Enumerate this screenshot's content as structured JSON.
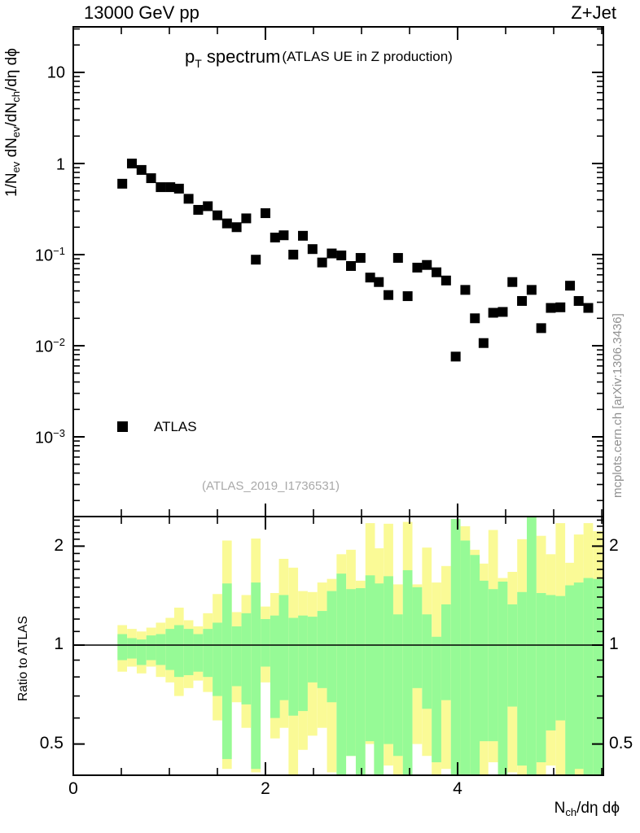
{
  "header": {
    "left": "13000 GeV pp",
    "right": "Z+Jet"
  },
  "title": {
    "prefix": "p",
    "subscript": "T",
    "rest": " spectrum",
    "annotation": "(ATLAS UE in Z production)"
  },
  "axis_labels": {
    "main_y_parts": {
      "p0": "1/N",
      "s0": "ev",
      "p1": " dN",
      "s1": "ev",
      "p2": "/dN",
      "s2": "ch",
      "p3": "/dη dϕ"
    },
    "ratio_y": "Ratio to ATLAS",
    "x_parts": {
      "p0": "N",
      "s0": "ch",
      "p1": "/dη dϕ"
    }
  },
  "legend": {
    "marker": "black-filled-square",
    "label": "ATLAS"
  },
  "watermark": "(ATLAS_2019_I1736531)",
  "credit": "mcplots.cern.ch [arXiv:1306.3436]",
  "colors": {
    "marker": "#000000",
    "band_outer": "#fafa96",
    "band_inner": "#96fa96",
    "frame": "#000000",
    "watermark": "#a9a9a9",
    "credit": "#909090"
  },
  "chart_data": {
    "type": "scatter",
    "title": "p_T spectrum (ATLAS UE in Z production)",
    "top_panel": {
      "yscale": "log",
      "xlim": [
        0,
        5.52
      ],
      "ylim": [
        0.000133,
        31.6
      ],
      "ylabel": "1/N_ev dN_ev/dN_ch/dη dϕ",
      "grid": false,
      "legend_position": "lower-left",
      "ytick_values": [
        10,
        1,
        0.1,
        0.01,
        0.001
      ],
      "ytick_labels": [
        {
          "base": "10",
          "exp": ""
        },
        {
          "base": "1",
          "exp": ""
        },
        {
          "base": "10",
          "exp": "−1"
        },
        {
          "base": "10",
          "exp": "−2"
        },
        {
          "base": "10",
          "exp": "−3"
        }
      ],
      "series": [
        {
          "name": "ATLAS",
          "marker": "filled-square",
          "color": "#000000",
          "points": [
            [
              0.51,
              0.6
            ],
            [
              0.61,
              1.0
            ],
            [
              0.71,
              0.85
            ],
            [
              0.81,
              0.69
            ],
            [
              0.91,
              0.55
            ],
            [
              1.01,
              0.55
            ],
            [
              1.1,
              0.53
            ],
            [
              1.2,
              0.41
            ],
            [
              1.3,
              0.31
            ],
            [
              1.4,
              0.34
            ],
            [
              1.5,
              0.27
            ],
            [
              1.6,
              0.22
            ],
            [
              1.7,
              0.2
            ],
            [
              1.8,
              0.25
            ],
            [
              1.9,
              0.088
            ],
            [
              2.0,
              0.285
            ],
            [
              2.1,
              0.154
            ],
            [
              2.19,
              0.163
            ],
            [
              2.29,
              0.1
            ],
            [
              2.39,
              0.161
            ],
            [
              2.49,
              0.115
            ],
            [
              2.59,
              0.082
            ],
            [
              2.69,
              0.103
            ],
            [
              2.79,
              0.098
            ],
            [
              2.89,
              0.075
            ],
            [
              2.99,
              0.092
            ],
            [
              3.09,
              0.056
            ],
            [
              3.18,
              0.05
            ],
            [
              3.28,
              0.036
            ],
            [
              3.38,
              0.092
            ],
            [
              3.48,
              0.035
            ],
            [
              3.58,
              0.072
            ],
            [
              3.68,
              0.077
            ],
            [
              3.78,
              0.064
            ],
            [
              3.88,
              0.052
            ],
            [
              3.98,
              0.0076
            ],
            [
              4.08,
              0.041
            ],
            [
              4.18,
              0.02
            ],
            [
              4.27,
              0.0107
            ],
            [
              4.37,
              0.023
            ],
            [
              4.47,
              0.0235
            ],
            [
              4.57,
              0.05
            ],
            [
              4.67,
              0.031
            ],
            [
              4.77,
              0.041
            ],
            [
              4.87,
              0.0156
            ],
            [
              4.97,
              0.026
            ],
            [
              5.07,
              0.0264
            ],
            [
              5.17,
              0.0456
            ],
            [
              5.26,
              0.031
            ],
            [
              5.36,
              0.026
            ]
          ]
        }
      ]
    },
    "bottom_panel": {
      "yscale": "log",
      "ylim": [
        0.402,
        2.46
      ],
      "ylabel": "Ratio to ATLAS",
      "xlabel": "N_ch/dη dϕ",
      "reference_line": 1.0,
      "ytick_values": [
        2,
        1,
        0.5
      ],
      "ytick_labels": [
        "2",
        "1",
        "0.5"
      ],
      "xtick_values": [
        0,
        2,
        4
      ],
      "xtick_labels": [
        "0",
        "2",
        "4"
      ],
      "band_bin_halfwidth": 0.0496,
      "band_bins_format": [
        "x_center",
        "outer_lo",
        "outer_hi",
        "inner_lo",
        "inner_hi"
      ],
      "band_bins": [
        [
          0.51,
          0.83,
          1.15,
          0.9,
          1.08
        ],
        [
          0.61,
          0.86,
          1.12,
          0.91,
          1.05
        ],
        [
          0.71,
          0.82,
          1.1,
          0.87,
          1.04
        ],
        [
          0.81,
          0.86,
          1.13,
          0.9,
          1.07
        ],
        [
          0.91,
          0.8,
          1.17,
          0.87,
          1.08
        ],
        [
          1.01,
          0.77,
          1.21,
          0.84,
          1.12
        ],
        [
          1.1,
          0.7,
          1.3,
          0.8,
          1.15
        ],
        [
          1.2,
          0.74,
          1.19,
          0.81,
          1.12
        ],
        [
          1.3,
          0.78,
          1.14,
          0.83,
          1.08
        ],
        [
          1.4,
          0.72,
          1.25,
          0.8,
          1.12
        ],
        [
          1.5,
          0.59,
          1.43,
          0.7,
          1.17
        ],
        [
          1.6,
          0.42,
          2.08,
          0.45,
          1.54
        ],
        [
          1.7,
          0.67,
          1.26,
          0.75,
          1.14
        ],
        [
          1.8,
          0.56,
          1.42,
          0.66,
          1.25
        ],
        [
          1.9,
          0.41,
          2.11,
          0.42,
          1.55
        ],
        [
          2.0,
          0.77,
          1.31,
          0.86,
          1.2
        ],
        [
          2.1,
          0.52,
          1.44,
          0.6,
          1.23
        ],
        [
          2.19,
          0.56,
          1.83,
          0.68,
          1.42
        ],
        [
          2.29,
          0.4,
          1.72,
          0.61,
          1.21
        ],
        [
          2.39,
          0.48,
          1.46,
          0.63,
          1.23
        ],
        [
          2.49,
          0.53,
          1.45,
          0.77,
          1.22
        ],
        [
          2.59,
          0.56,
          1.55,
          0.74,
          1.27
        ],
        [
          2.69,
          0.41,
          1.59,
          0.67,
          1.46
        ],
        [
          2.79,
          0.4,
          1.89,
          0.4,
          1.65
        ],
        [
          2.89,
          0.46,
          1.95,
          0.46,
          1.48
        ],
        [
          2.99,
          0.4,
          1.57,
          0.4,
          1.49
        ],
        [
          3.09,
          0.5,
          2.35,
          0.51,
          1.63
        ],
        [
          3.18,
          0.4,
          1.97,
          0.4,
          1.54
        ],
        [
          3.28,
          0.43,
          2.34,
          0.5,
          1.62
        ],
        [
          3.38,
          0.4,
          1.53,
          0.46,
          1.24
        ],
        [
          3.48,
          0.4,
          2.37,
          0.4,
          1.69
        ],
        [
          3.58,
          0.5,
          1.53,
          0.74,
          1.5
        ],
        [
          3.68,
          0.46,
          1.98,
          0.64,
          1.24
        ],
        [
          3.78,
          0.4,
          1.55,
          0.44,
          1.06
        ],
        [
          3.88,
          0.42,
          1.74,
          0.68,
          1.33
        ],
        [
          3.98,
          0.4,
          2.42,
          0.4,
          2.42
        ],
        [
          4.08,
          0.4,
          2.3,
          0.4,
          2.08
        ],
        [
          4.18,
          0.4,
          1.95,
          0.4,
          1.88
        ],
        [
          4.27,
          0.4,
          1.77,
          0.51,
          1.57
        ],
        [
          4.37,
          0.44,
          2.24,
          0.51,
          1.48
        ],
        [
          4.47,
          0.4,
          1.6,
          0.4,
          1.56
        ],
        [
          4.57,
          0.41,
          1.67,
          0.65,
          1.33
        ],
        [
          4.67,
          0.4,
          2.1,
          0.43,
          1.45
        ],
        [
          4.77,
          0.4,
          2.45,
          0.4,
          2.45
        ],
        [
          4.87,
          0.4,
          2.15,
          0.44,
          1.44
        ],
        [
          4.97,
          0.43,
          1.89,
          0.55,
          1.42
        ],
        [
          5.07,
          0.4,
          2.35,
          0.59,
          1.41
        ],
        [
          5.17,
          0.4,
          1.78,
          0.4,
          1.52
        ],
        [
          5.26,
          0.4,
          2.17,
          0.42,
          1.55
        ],
        [
          5.36,
          0.4,
          2.35,
          0.4,
          1.6
        ],
        [
          5.46,
          0.4,
          2.22,
          0.4,
          1.59
        ]
      ]
    }
  }
}
